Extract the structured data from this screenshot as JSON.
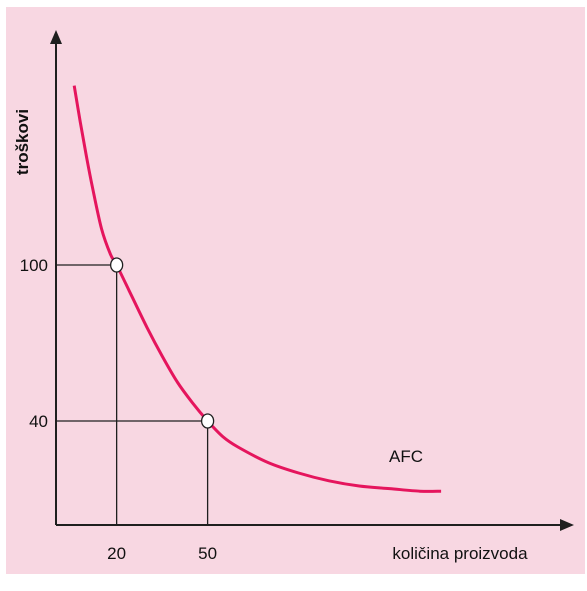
{
  "colors": {
    "background": "#f8d7e2",
    "curve": "#e5155d",
    "axis": "#1f1f1f",
    "marker_fill": "#ffffff"
  },
  "chart_data": {
    "type": "line",
    "title": "",
    "xlabel": "količina proizvoda",
    "ylabel": "troškovi",
    "xticks": [
      20,
      50
    ],
    "yticks": [
      40,
      100
    ],
    "xlim": [
      0,
      155
    ],
    "ylim": [
      0,
      185
    ],
    "grid": false,
    "series": [
      {
        "name": "AFC",
        "x": [
          6,
          8,
          10,
          12,
          15,
          18,
          20,
          25,
          30,
          35,
          40,
          45,
          50,
          55,
          60,
          70,
          80,
          90,
          100,
          110,
          120,
          127
        ],
        "values": [
          169,
          155,
          142,
          130,
          114,
          104,
          100,
          88,
          76,
          65,
          55,
          47,
          40,
          34,
          30,
          24,
          20,
          17,
          15,
          14,
          13,
          13
        ]
      }
    ],
    "highlight_points": [
      {
        "x": 20,
        "y": 100
      },
      {
        "x": 50,
        "y": 40
      }
    ]
  }
}
